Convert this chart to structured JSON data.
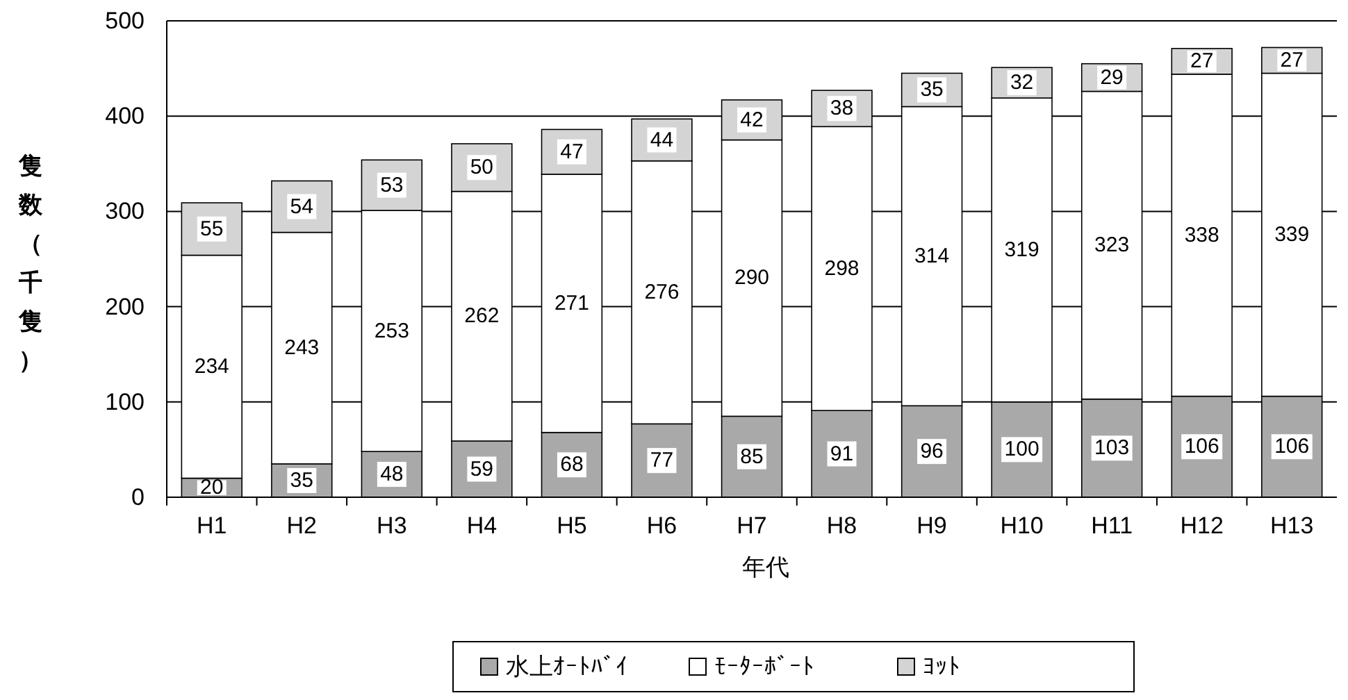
{
  "chart_data": {
    "type": "bar",
    "stacked": true,
    "xlabel": "年代",
    "ylabel": "隻数（千隻）",
    "categories": [
      "H1",
      "H2",
      "H3",
      "H4",
      "H5",
      "H6",
      "H7",
      "H8",
      "H9",
      "H10",
      "H11",
      "H12",
      "H13"
    ],
    "series": [
      {
        "name": "水上ｵｰﾄﾊﾞｲ",
        "color": "#a9a9a9",
        "values": [
          20,
          35,
          48,
          59,
          68,
          77,
          85,
          91,
          96,
          100,
          103,
          106,
          106
        ]
      },
      {
        "name": "ﾓｰﾀｰﾎﾞｰﾄ",
        "color": "#ffffff",
        "values": [
          234,
          243,
          253,
          262,
          271,
          276,
          290,
          298,
          314,
          319,
          323,
          338,
          339
        ]
      },
      {
        "name": "ﾖｯﾄ",
        "color": "#d4d4d4",
        "values": [
          55,
          54,
          53,
          50,
          47,
          44,
          42,
          38,
          35,
          32,
          29,
          27,
          27
        ]
      }
    ],
    "ylim": [
      0,
      500
    ],
    "yticks": [
      0,
      100,
      200,
      300,
      400,
      500
    ],
    "grid": "y",
    "legend": "bottom",
    "data_labels": true
  }
}
